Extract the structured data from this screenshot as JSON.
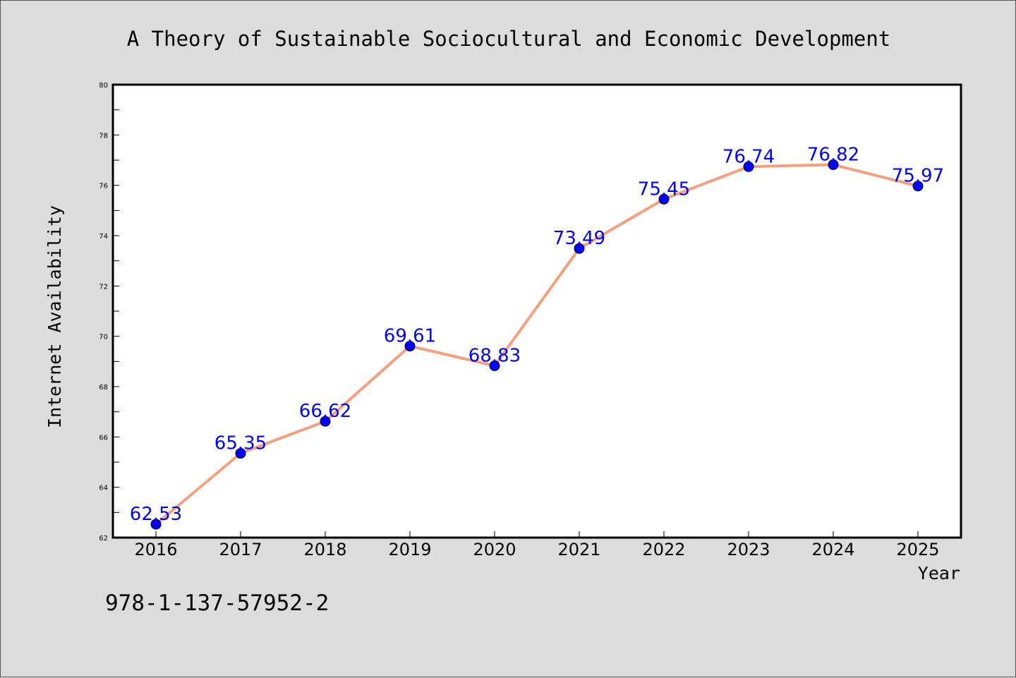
{
  "chart_data": {
    "type": "line",
    "title": "A Theory of Sustainable Sociocultural and Economic Development",
    "xlabel": "Year",
    "ylabel": "Internet Availability",
    "categories": [
      "2016",
      "2017",
      "2018",
      "2019",
      "2020",
      "2021",
      "2022",
      "2023",
      "2024",
      "2025"
    ],
    "series": [
      {
        "values": [
          62.53,
          65.35,
          66.62,
          69.61,
          68.83,
          73.49,
          75.45,
          76.74,
          76.82,
          75.97
        ],
        "data_labels": [
          "62.53",
          "65.35",
          "66.62",
          "69.61",
          "68.83",
          "73.49",
          "75.45",
          "76.74",
          "76.82",
          "75.97"
        ],
        "line_color": "#f4a07e",
        "marker_color": "#0000ff"
      }
    ],
    "ylim": [
      62,
      80
    ],
    "yticks": [
      "62",
      "64",
      "66",
      "68",
      "70",
      "72",
      "74",
      "76",
      "78",
      "80"
    ],
    "grid": false,
    "legend": "none",
    "footer": "978-1-137-57952-2",
    "colors": {
      "background": "#dcdcdc",
      "plot_background": "#ffffff",
      "label_color": "#0000ff"
    }
  }
}
